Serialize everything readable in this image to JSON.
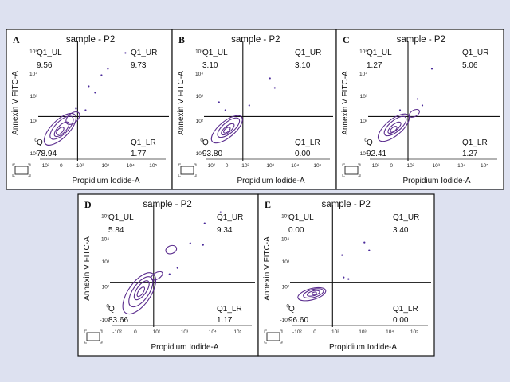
{
  "chart_data": [
    {
      "type": "scatter",
      "panel": "A",
      "title": "sample - P2",
      "xlabel": "Propidium Iodide-A",
      "ylabel": "Annexin V FITC-A",
      "x_ticks": [
        "-10²",
        "0",
        "10²",
        "10³",
        "10⁴",
        "10⁵"
      ],
      "y_ticks": [
        "10⁵",
        "10⁴",
        "10³",
        "10²",
        "0",
        "-10²"
      ],
      "quadrants": {
        "UL": {
          "name": "Q1_UL",
          "value": "9.56"
        },
        "UR": {
          "name": "Q1_UR",
          "value": "9.73"
        },
        "LL": {
          "name": "Q",
          "value": "78.94"
        },
        "LR": {
          "name": "Q1_LR",
          "value": "1.77"
        }
      }
    },
    {
      "type": "scatter",
      "panel": "B",
      "title": "sample - P2",
      "xlabel": "Propidium Iodide-A",
      "ylabel": "Annexin V FITC-A",
      "x_ticks": [
        "-10²",
        "0",
        "10²",
        "10³",
        "10⁴",
        "10⁵"
      ],
      "y_ticks": [
        "10⁵",
        "10⁴",
        "10³",
        "10²",
        "0",
        "-10²"
      ],
      "quadrants": {
        "UL": {
          "name": "Q1_UL",
          "value": "3.10"
        },
        "UR": {
          "name": "Q1_UR",
          "value": "3.10"
        },
        "LL": {
          "name": "Q",
          "value": "93.80"
        },
        "LR": {
          "name": "Q1_LR",
          "value": "0.00"
        }
      }
    },
    {
      "type": "scatter",
      "panel": "C",
      "title": "sample - P2",
      "xlabel": "Propidium Iodide-A",
      "ylabel": "Annexin V FITC-A",
      "x_ticks": [
        "-10²",
        "0",
        "10²",
        "10³",
        "10⁴",
        "10⁵"
      ],
      "y_ticks": [
        "10⁵",
        "10⁴",
        "10³",
        "10²",
        "0",
        "-10²"
      ],
      "quadrants": {
        "UL": {
          "name": "Q1_UL",
          "value": "1.27"
        },
        "UR": {
          "name": "Q1_UR",
          "value": "5.06"
        },
        "LL": {
          "name": "Q",
          "value": "92.41"
        },
        "LR": {
          "name": "Q1_LR",
          "value": "1.27"
        }
      }
    },
    {
      "type": "scatter",
      "panel": "D",
      "title": "sample - P2",
      "xlabel": "Propidium Iodide-A",
      "ylabel": "Annexin V FITC-A",
      "x_ticks": [
        "-10²",
        "0",
        "10²",
        "10³",
        "10⁴",
        "10⁵"
      ],
      "y_ticks": [
        "10⁵",
        "10⁴",
        "10³",
        "10²",
        "0",
        "-10²"
      ],
      "quadrants": {
        "UL": {
          "name": "Q1_UL",
          "value": "5.84"
        },
        "UR": {
          "name": "Q1_UR",
          "value": "9.34"
        },
        "LL": {
          "name": "Q",
          "value": "83.66"
        },
        "LR": {
          "name": "Q1_LR",
          "value": "1.17"
        }
      }
    },
    {
      "type": "scatter",
      "panel": "E",
      "title": "sample - P2",
      "xlabel": "Propidium Iodide-A",
      "ylabel": "Annexin V FITC-A",
      "x_ticks": [
        "-10²",
        "0",
        "10²",
        "10³",
        "10⁴",
        "10⁵"
      ],
      "y_ticks": [
        "10⁵",
        "10⁴",
        "10³",
        "10²",
        "0",
        "-10²"
      ],
      "quadrants": {
        "UL": {
          "name": "Q1_UL",
          "value": "0.00"
        },
        "UR": {
          "name": "Q1_UR",
          "value": "3.40"
        },
        "LL": {
          "name": "Q",
          "value": "96.60"
        },
        "LR": {
          "name": "Q1_LR",
          "value": "0.00"
        }
      }
    }
  ],
  "colors": {
    "population": "#5b2d8e",
    "background": "#dde1f0",
    "panel": "#ffffff"
  }
}
